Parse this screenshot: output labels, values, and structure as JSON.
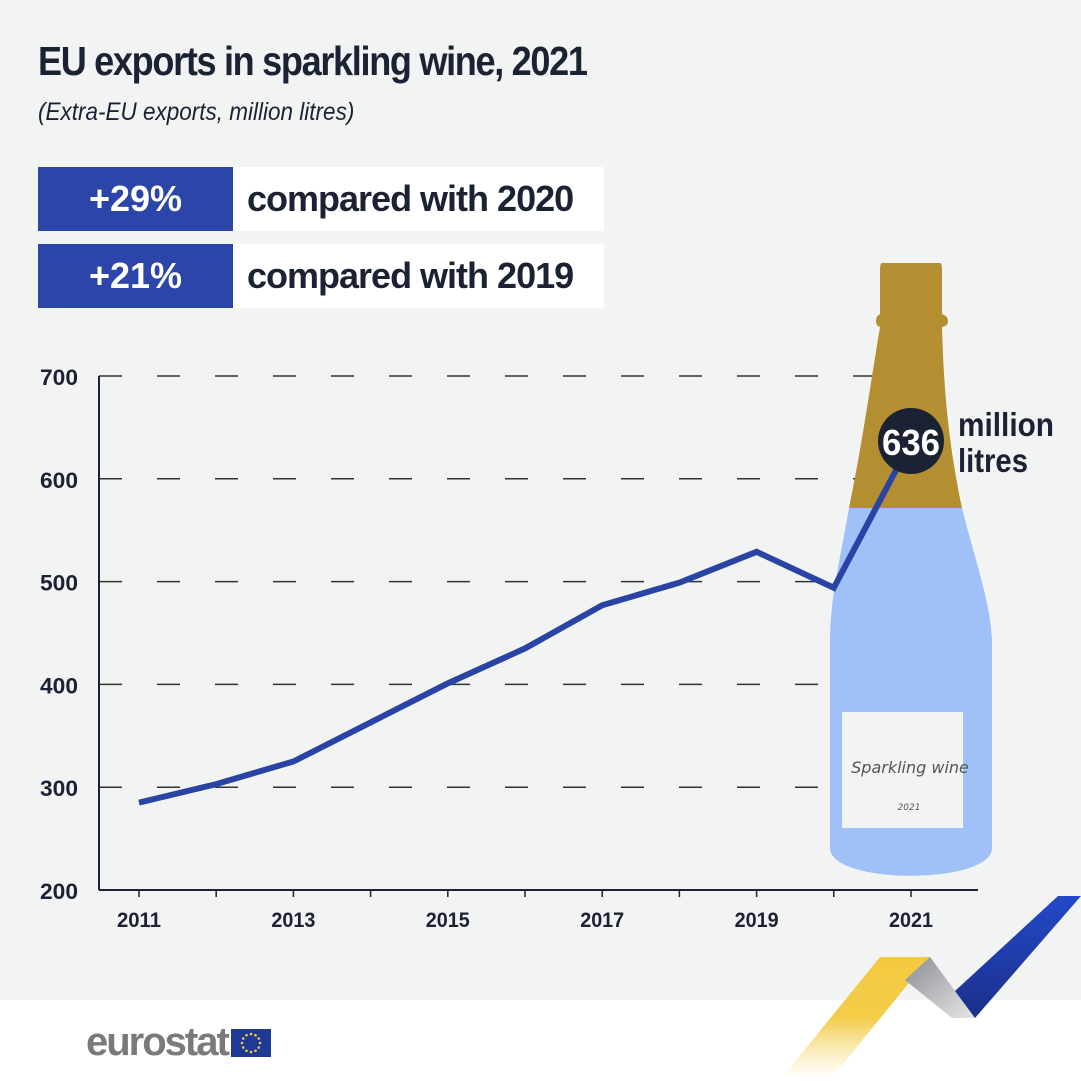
{
  "header": {
    "title": "EU exports in sparkling wine, 2021",
    "subtitle": "(Extra-EU exports, million litres)"
  },
  "stats": [
    {
      "value": "+29%",
      "label": "compared with 2020"
    },
    {
      "value": "+21%",
      "label": "compared with 2019"
    }
  ],
  "callout": {
    "value": "636",
    "unit_line1": "million",
    "unit_line2": "litres"
  },
  "bottle_label": {
    "name": "Sparkling wine",
    "year": "2021"
  },
  "logo": {
    "text": "eurostat"
  },
  "colors": {
    "line": "#2a44a6",
    "box": "#2c45a8",
    "text": "#1a2233",
    "bottle_neck": "#b38f31",
    "bottle_body": "#9fc1f8",
    "background": "#f2f4f3"
  },
  "chart_data": {
    "type": "line",
    "title": "EU exports in sparkling wine, 2021",
    "subtitle": "(Extra-EU exports, million litres)",
    "x": [
      2011,
      2012,
      2013,
      2014,
      2015,
      2016,
      2017,
      2018,
      2019,
      2020,
      2021
    ],
    "values": [
      285,
      303,
      325,
      363,
      401,
      435,
      477,
      499,
      529,
      494,
      636
    ],
    "ylim": [
      200,
      700
    ],
    "yticks": [
      200,
      300,
      400,
      500,
      600,
      700
    ],
    "xticklabels": [
      "2011",
      "2013",
      "2015",
      "2017",
      "2019",
      "2021"
    ],
    "grid": "horizontal dashed",
    "legend": "none"
  }
}
